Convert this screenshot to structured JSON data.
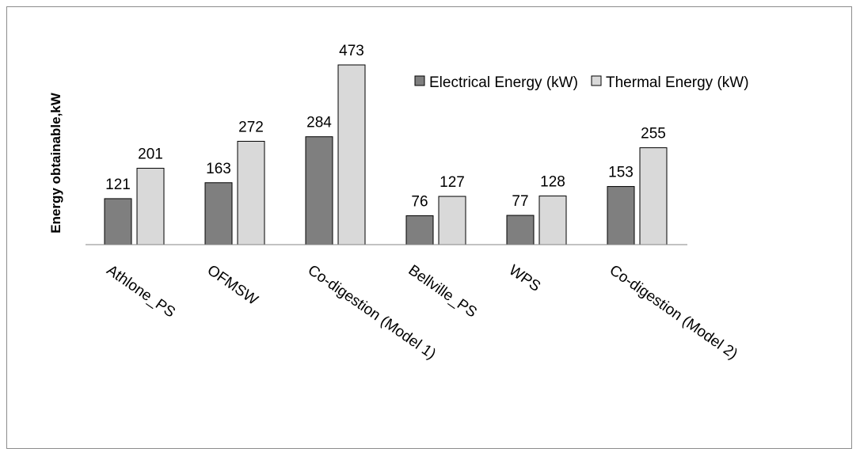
{
  "chart_data": {
    "type": "bar",
    "title": "",
    "xlabel": "",
    "ylabel": "Energy obtainable,kW",
    "categories": [
      "Athlone_PS",
      "OFMSW",
      "Co-digestion (Model 1)",
      "Bellville_PS",
      "WPS",
      "Co-digestion (Model 2)"
    ],
    "series": [
      {
        "name": "Electrical Energy (kW)",
        "values": [
          121,
          163,
          284,
          76,
          77,
          153
        ],
        "color": "#7f7f7f"
      },
      {
        "name": "Thermal Energy (kW)",
        "values": [
          201,
          272,
          473,
          127,
          128,
          255
        ],
        "color": "#d9d9d9"
      }
    ],
    "ylim": [
      0,
      473
    ],
    "grid": false,
    "legend_position": "top-right",
    "data_labels": true
  }
}
